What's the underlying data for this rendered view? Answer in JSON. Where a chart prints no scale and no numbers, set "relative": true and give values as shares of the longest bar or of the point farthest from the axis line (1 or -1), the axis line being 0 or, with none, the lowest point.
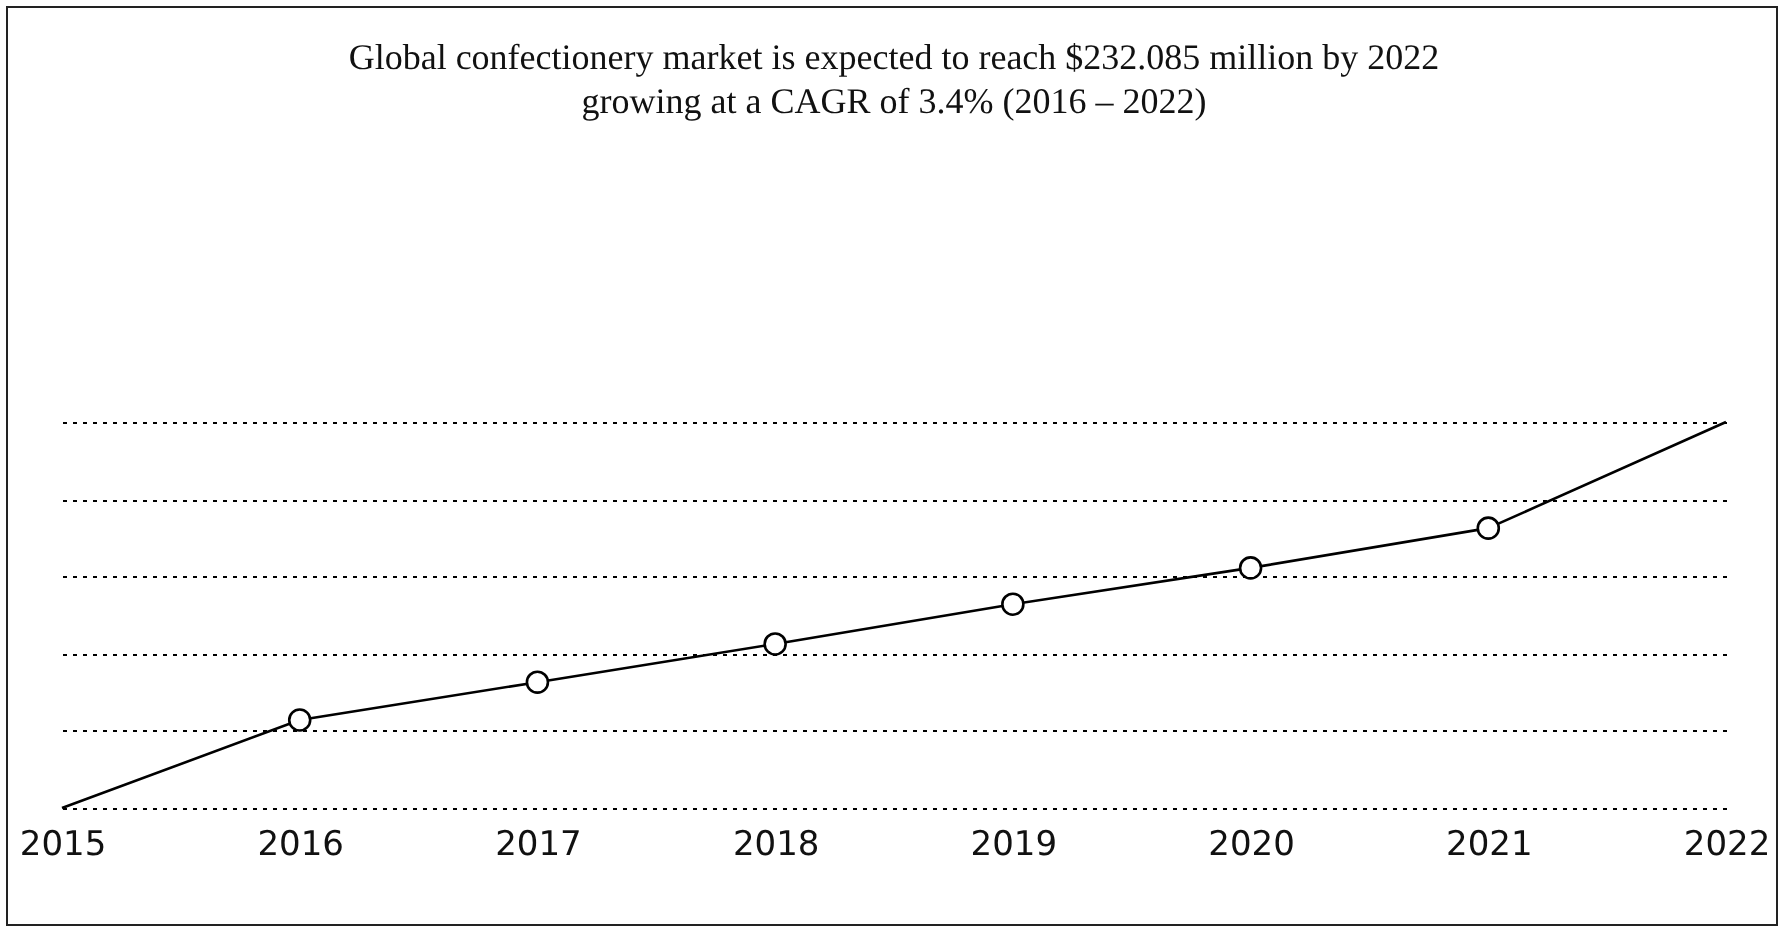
{
  "chart_data": {
    "type": "line",
    "title": "Global confectionery market is expected to reach $232.085 million by 2022",
    "subtitle": "growing at a CAGR of 3.4% (2016 – 2022)",
    "relative": true,
    "grid": "y",
    "categories": [
      "2015",
      "2016",
      "2017",
      "2018",
      "2019",
      "2020",
      "2021",
      "2022"
    ],
    "series": [
      {
        "type": "line",
        "color": "#000000",
        "marker": "none",
        "values": [
          0,
          0.228,
          0.326,
          0.425,
          0.528,
          0.622,
          0.725,
          1
        ]
      },
      {
        "type": "scatter",
        "color": "#000000",
        "marker": "circle",
        "values": [
          null,
          0.228,
          0.326,
          0.425,
          0.528,
          0.622,
          0.725,
          null
        ]
      }
    ]
  }
}
